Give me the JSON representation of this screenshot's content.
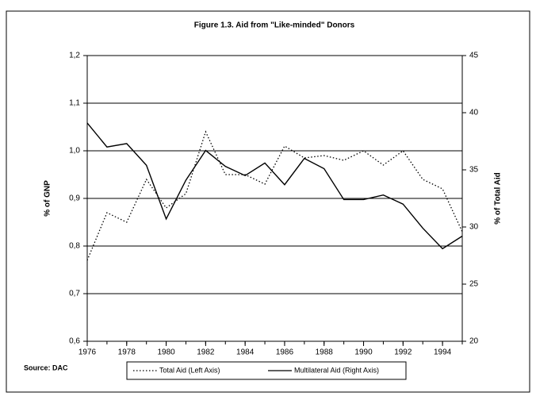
{
  "chart_data": {
    "type": "line",
    "title": "Figure 1.3.  Aid from \"Like-minded\" Donors",
    "source": "Source: DAC",
    "ylabel": "% of GNP",
    "y2label": "% of Total Aid",
    "x": [
      1976,
      1977,
      1978,
      1979,
      1980,
      1981,
      1982,
      1983,
      1984,
      1985,
      1986,
      1987,
      1988,
      1989,
      1990,
      1991,
      1992,
      1993,
      1994,
      1995
    ],
    "xlim": [
      1976,
      1995
    ],
    "xticks": [
      1976,
      1978,
      1980,
      1982,
      1984,
      1986,
      1988,
      1990,
      1992,
      1994
    ],
    "ylim": [
      0.6,
      1.2
    ],
    "yticks": [
      {
        "value": 0.6,
        "label": "0,6"
      },
      {
        "value": 0.7,
        "label": "0,7"
      },
      {
        "value": 0.8,
        "label": "0,8"
      },
      {
        "value": 0.9,
        "label": "0,9"
      },
      {
        "value": 1.0,
        "label": "1,0"
      },
      {
        "value": 1.1,
        "label": "1,1"
      },
      {
        "value": 1.2,
        "label": "1,2"
      }
    ],
    "y2lim": [
      20,
      45
    ],
    "y2ticks": [
      20,
      25,
      30,
      35,
      40,
      45
    ],
    "grid": true,
    "legend": "bottom",
    "series": [
      {
        "name": "Total Aid (Left Axis)",
        "color": "#000000",
        "dash": "dotted",
        "values": [
          0.77,
          0.87,
          0.85,
          0.94,
          0.88,
          0.91,
          1.04,
          0.95,
          0.95,
          0.93,
          1.01,
          0.985,
          0.99,
          0.98,
          1.0,
          0.97,
          1.0,
          0.94,
          0.92,
          0.83
        ]
      },
      {
        "name": "Multilateral Aid (Right Axis)",
        "color": "#000000",
        "dash": "solid",
        "axis": "y2",
        "values": [
          39.1,
          37.0,
          37.3,
          35.4,
          30.7,
          34.1,
          36.7,
          35.3,
          34.5,
          35.6,
          33.7,
          36.0,
          35.1,
          32.4,
          32.4,
          32.8,
          32.0,
          29.9,
          28.1,
          29.2
        ]
      }
    ]
  }
}
